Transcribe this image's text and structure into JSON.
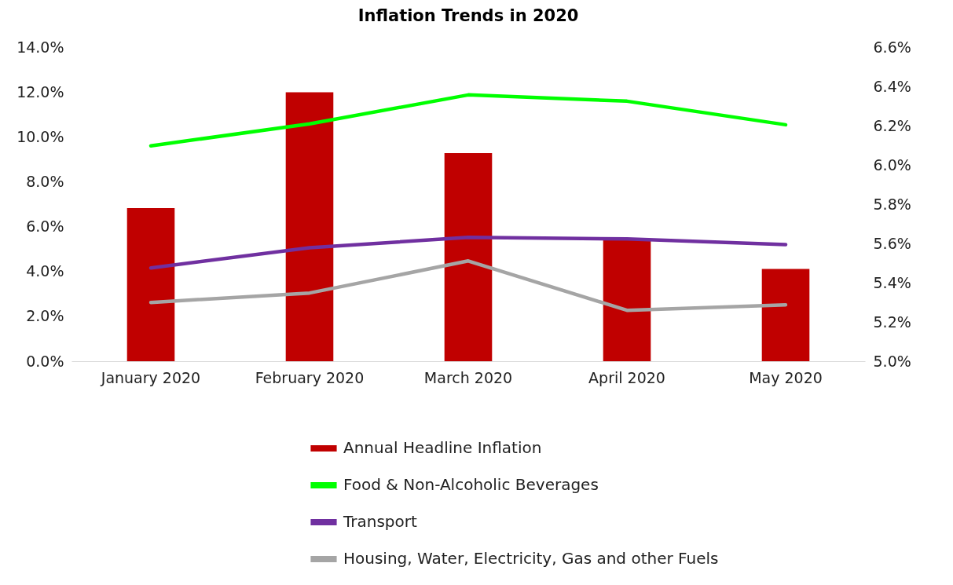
{
  "chart_data": {
    "type": "line",
    "title": "Inflation Trends in 2020",
    "categories": [
      "January 2020",
      "February 2020",
      "March 2020",
      "April 2020",
      "May 2020"
    ],
    "series": [
      {
        "name": "Annual Headline Inflation",
        "type": "bar",
        "axis": "y2",
        "color": "#c00000",
        "values": [
          5.78,
          6.37,
          6.06,
          5.62,
          5.47
        ]
      },
      {
        "name": "Food & Non-Alcoholic Beverages",
        "color": "#00ff00",
        "values": [
          9.6,
          10.58,
          11.87,
          11.59,
          10.54
        ]
      },
      {
        "name": "Transport",
        "color": "#7030a0",
        "values": [
          4.16,
          5.06,
          5.52,
          5.45,
          5.2
        ]
      },
      {
        "name": "Housing, Water, Electricity, Gas and other Fuels",
        "color": "#a5a5a5",
        "values": [
          2.62,
          3.04,
          4.47,
          2.27,
          2.51
        ]
      }
    ],
    "ylim": [
      0,
      14
    ],
    "yticks": [
      {
        "value": 0,
        "label": "0.0%"
      },
      {
        "value": 2,
        "label": "2.0%"
      },
      {
        "value": 4,
        "label": "4.0%"
      },
      {
        "value": 6,
        "label": "6.0%"
      },
      {
        "value": 8,
        "label": "8.0%"
      },
      {
        "value": 10,
        "label": "10.0%"
      },
      {
        "value": 12,
        "label": "12.0%"
      },
      {
        "value": 14,
        "label": "14.0%"
      }
    ],
    "y2lim": [
      5.0,
      6.6
    ],
    "y2ticks": [
      {
        "value": 5.0,
        "label": "5.0%"
      },
      {
        "value": 5.2,
        "label": "5.2%"
      },
      {
        "value": 5.4,
        "label": "5.4%"
      },
      {
        "value": 5.6,
        "label": "5.6%"
      },
      {
        "value": 5.8,
        "label": "5.8%"
      },
      {
        "value": 6.0,
        "label": "6.0%"
      },
      {
        "value": 6.2,
        "label": "6.2%"
      },
      {
        "value": 6.4,
        "label": "6.4%"
      },
      {
        "value": 6.6,
        "label": "6.6%"
      }
    ],
    "grid": false,
    "legend": "bottom",
    "marker": "none",
    "line_style": "solid"
  }
}
